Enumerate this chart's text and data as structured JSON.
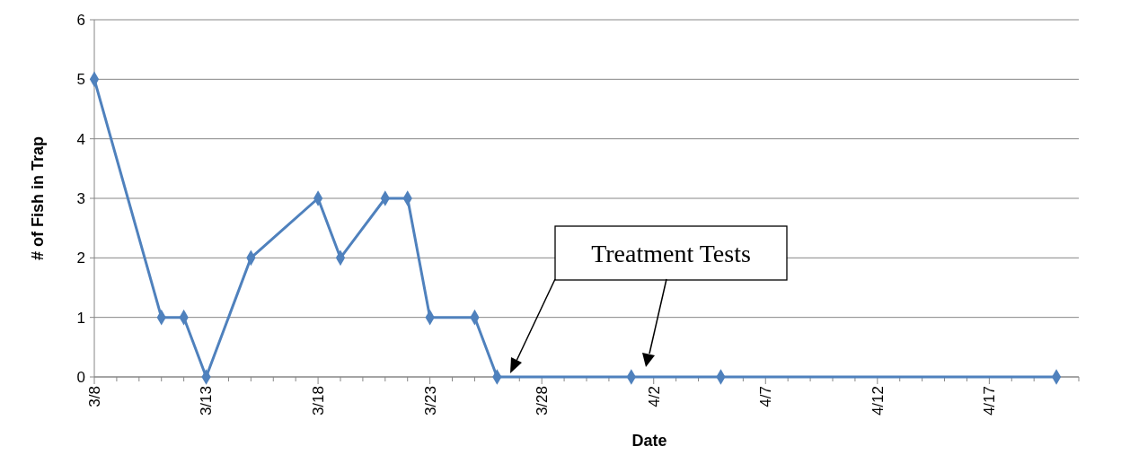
{
  "chart_data": {
    "type": "line",
    "xlabel": "Date",
    "ylabel": "# of Fish in Trap",
    "x": [
      "--03-08",
      "--03-11",
      "--03-12",
      "--03-13",
      "--03-15",
      "--03-18",
      "--03-19",
      "--03-21",
      "--03-22",
      "--03-23",
      "--03-25",
      "--03-26",
      "--04-01",
      "--04-05",
      "--04-20"
    ],
    "series": [
      {
        "color": "#4f81bd",
        "values": [
          5,
          1,
          1,
          0,
          2,
          3,
          2,
          3,
          3,
          1,
          1,
          0,
          0,
          0,
          0
        ]
      }
    ],
    "xlim": [
      "--03-08",
      "--04-21"
    ],
    "xticks": [
      {
        "value": "--03-08",
        "label": "3/8"
      },
      {
        "value": "--03-09",
        "label": null
      },
      {
        "value": "--03-10",
        "label": null
      },
      {
        "value": "--03-11",
        "label": null
      },
      {
        "value": "--03-12",
        "label": null
      },
      {
        "value": "--03-13",
        "label": "3/13"
      },
      {
        "value": "--03-14",
        "label": null
      },
      {
        "value": "--03-15",
        "label": null
      },
      {
        "value": "--03-16",
        "label": null
      },
      {
        "value": "--03-17",
        "label": null
      },
      {
        "value": "--03-18",
        "label": "3/18"
      },
      {
        "value": "--03-19",
        "label": null
      },
      {
        "value": "--03-20",
        "label": null
      },
      {
        "value": "--03-21",
        "label": null
      },
      {
        "value": "--03-22",
        "label": null
      },
      {
        "value": "--03-23",
        "label": "3/23"
      },
      {
        "value": "--03-24",
        "label": null
      },
      {
        "value": "--03-25",
        "label": null
      },
      {
        "value": "--03-26",
        "label": null
      },
      {
        "value": "--03-27",
        "label": null
      },
      {
        "value": "--03-28",
        "label": "3/28"
      },
      {
        "value": "--03-29",
        "label": null
      },
      {
        "value": "--03-30",
        "label": null
      },
      {
        "value": "--03-31",
        "label": null
      },
      {
        "value": "--04-01",
        "label": null
      },
      {
        "value": "--04-02",
        "label": "4/2"
      },
      {
        "value": "--04-03",
        "label": null
      },
      {
        "value": "--04-04",
        "label": null
      },
      {
        "value": "--04-05",
        "label": null
      },
      {
        "value": "--04-06",
        "label": null
      },
      {
        "value": "--04-07",
        "label": "4/7"
      },
      {
        "value": "--04-08",
        "label": null
      },
      {
        "value": "--04-09",
        "label": null
      },
      {
        "value": "--04-10",
        "label": null
      },
      {
        "value": "--04-11",
        "label": null
      },
      {
        "value": "--04-12",
        "label": "4/12"
      },
      {
        "value": "--04-13",
        "label": null
      },
      {
        "value": "--04-14",
        "label": null
      },
      {
        "value": "--04-15",
        "label": null
      },
      {
        "value": "--04-16",
        "label": null
      },
      {
        "value": "--04-17",
        "label": "4/17"
      },
      {
        "value": "--04-18",
        "label": null
      },
      {
        "value": "--04-19",
        "label": null
      },
      {
        "value": "--04-20",
        "label": null
      },
      {
        "value": "--04-21",
        "label": null
      }
    ],
    "ylim": [
      0,
      6
    ],
    "yticks": [
      0,
      1,
      2,
      3,
      4,
      5,
      6
    ],
    "grid": "y",
    "marker": "diamond",
    "line_style": "solid",
    "annotations": [
      "Treatment Tests"
    ]
  }
}
